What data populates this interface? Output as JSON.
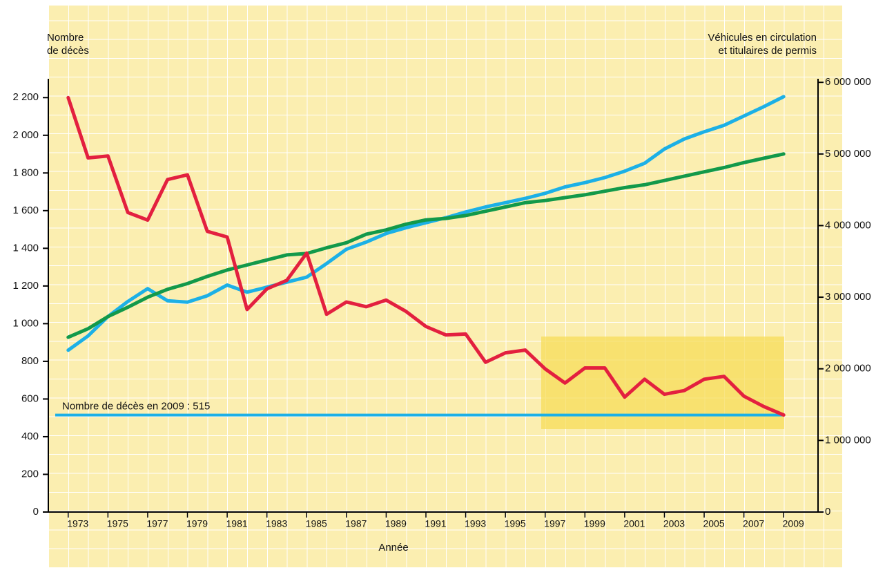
{
  "chart_data": {
    "type": "line",
    "y_label": [
      "Nombre",
      "de décès"
    ],
    "y2_label": [
      "Véhicules en circulation",
      "et titulaires de permis"
    ],
    "x_label": "Année",
    "x": [
      1973,
      1974,
      1975,
      1976,
      1977,
      1978,
      1979,
      1980,
      1981,
      1982,
      1983,
      1984,
      1985,
      1986,
      1987,
      1988,
      1989,
      1990,
      1991,
      1992,
      1993,
      1994,
      1995,
      1996,
      1997,
      1998,
      1999,
      2000,
      2001,
      2002,
      2003,
      2004,
      2005,
      2006,
      2007,
      2008,
      2009
    ],
    "series": [
      {
        "color": "#e3203f",
        "values": [
          2200,
          1880,
          1890,
          1590,
          1550,
          1765,
          1790,
          1490,
          1460,
          1075,
          1185,
          1230,
          1375,
          1050,
          1115,
          1090,
          1125,
          1065,
          985,
          940,
          945,
          795,
          845,
          860,
          760,
          685,
          765,
          765,
          610,
          705,
          625,
          645,
          705,
          720,
          615,
          560,
          515
        ]
      },
      {
        "color": "#1cb0e6",
        "axis": "y2",
        "values": [
          2260000,
          2460000,
          2730000,
          2940000,
          3120000,
          2950000,
          2930000,
          3020000,
          3170000,
          3070000,
          3140000,
          3210000,
          3280000,
          3470000,
          3670000,
          3770000,
          3890000,
          3970000,
          4040000,
          4110000,
          4190000,
          4260000,
          4320000,
          4380000,
          4450000,
          4540000,
          4600000,
          4670000,
          4760000,
          4870000,
          5070000,
          5210000,
          5310000,
          5400000,
          5530000,
          5660000,
          5800000
        ]
      },
      {
        "color": "#12994a",
        "axis": "y2",
        "values": [
          2440000,
          2560000,
          2730000,
          2860000,
          3000000,
          3110000,
          3190000,
          3290000,
          3380000,
          3450000,
          3520000,
          3590000,
          3610000,
          3690000,
          3760000,
          3880000,
          3940000,
          4020000,
          4080000,
          4100000,
          4140000,
          4200000,
          4260000,
          4320000,
          4350000,
          4390000,
          4430000,
          4480000,
          4530000,
          4570000,
          4630000,
          4690000,
          4750000,
          4810000,
          4880000,
          4940000,
          5000000
        ]
      }
    ],
    "reference": {
      "value": 515,
      "label": "Nombre de décès en 2009 : 515",
      "color": "#1cb0e6"
    },
    "xlim": [
      1972,
      2010
    ],
    "xticks": [
      1973,
      1975,
      1977,
      1979,
      1981,
      1983,
      1985,
      1987,
      1989,
      1991,
      1993,
      1995,
      1997,
      1999,
      2001,
      2003,
      2005,
      2007,
      2009
    ],
    "ylim": [
      0,
      2300
    ],
    "yticks": [
      0,
      200,
      400,
      600,
      800,
      {
        "value": 1000,
        "label": "1 000"
      },
      {
        "value": 1200,
        "label": "1 200"
      },
      {
        "value": 1400,
        "label": "1 400"
      },
      {
        "value": 1600,
        "label": "1 600"
      },
      {
        "value": 1800,
        "label": "1 800"
      },
      {
        "value": 2000,
        "label": "2 000"
      },
      {
        "value": 2200,
        "label": "2 200"
      }
    ],
    "y2lim": [
      0,
      6050000
    ],
    "y2ticks": [
      0,
      {
        "value": 1000000,
        "label": "1 000 000"
      },
      {
        "value": 2000000,
        "label": "2 000 000"
      },
      {
        "value": 3000000,
        "label": "3 000 000"
      },
      {
        "value": 4000000,
        "label": "4 000 000"
      },
      {
        "value": 5000000,
        "label": "5 000 000"
      },
      {
        "value": 6000000,
        "label": "6 000 000"
      }
    ]
  }
}
